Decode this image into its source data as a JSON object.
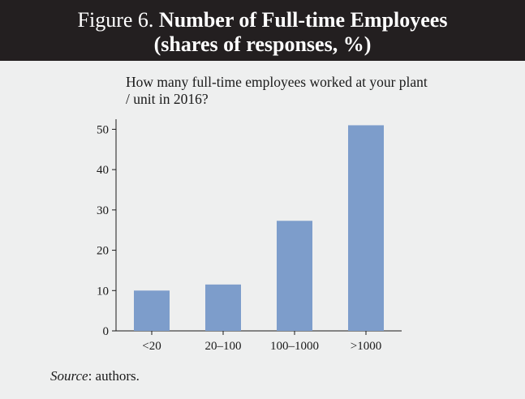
{
  "figure": {
    "label": "Figure 6.",
    "title": "Number of Full-time Employees",
    "title_line2": "(shares of responses, %)"
  },
  "question": "How many full-time employees worked at your plant / unit in 2016?",
  "source": {
    "label": "Source",
    "text": ": authors."
  },
  "colors": {
    "header_bg": "#231f20",
    "bar": "#7d9dcb",
    "background": "#eeefef"
  },
  "chart_data": {
    "type": "bar",
    "categories": [
      "<20",
      "20–100",
      "100–1000",
      ">1000"
    ],
    "values": [
      10,
      11.5,
      27.3,
      51
    ],
    "ylim": [
      0,
      52.5
    ],
    "yticks": [
      0,
      10,
      20,
      30,
      40,
      50
    ],
    "grid": false
  }
}
